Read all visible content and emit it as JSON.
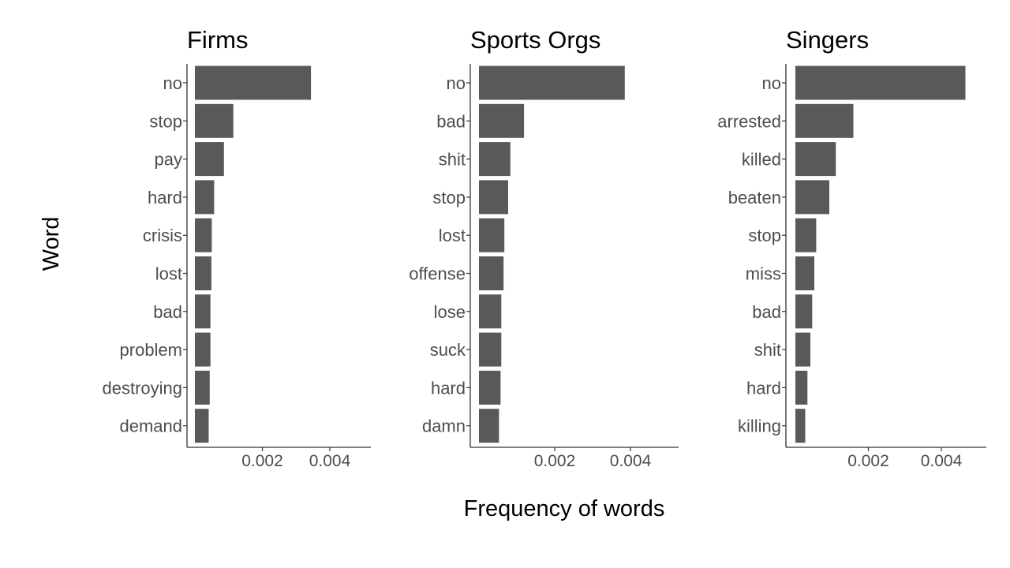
{
  "chart_data": [
    {
      "type": "bar",
      "orientation": "horizontal",
      "title": "Firms",
      "categories": [
        "no",
        "stop",
        "pay",
        "hard",
        "crisis",
        "lost",
        "bad",
        "problem",
        "destroying",
        "demand"
      ],
      "values": [
        0.00344,
        0.00114,
        0.00086,
        0.00057,
        0.0005,
        0.00049,
        0.00046,
        0.00046,
        0.00044,
        0.00041
      ],
      "xticks": [
        "0.002",
        "0.004"
      ],
      "xlim": [
        0,
        0.00525
      ]
    },
    {
      "type": "bar",
      "orientation": "horizontal",
      "title": "Sports Orgs",
      "categories": [
        "no",
        "bad",
        "shit",
        "stop",
        "lost",
        "offense",
        "lose",
        "suck",
        "hard",
        "damn"
      ],
      "values": [
        0.00385,
        0.00119,
        0.00083,
        0.00077,
        0.00067,
        0.00065,
        0.00059,
        0.00059,
        0.00057,
        0.00053
      ],
      "xticks": [
        "0.002",
        "0.004"
      ],
      "xlim": [
        0,
        0.00525
      ]
    },
    {
      "type": "bar",
      "orientation": "horizontal",
      "title": "Singers",
      "categories": [
        "no",
        "arrested",
        "killed",
        "beaten",
        "stop",
        "miss",
        "bad",
        "shit",
        "hard",
        "killing"
      ],
      "values": [
        0.00466,
        0.00159,
        0.00111,
        0.00093,
        0.00057,
        0.00052,
        0.00046,
        0.00041,
        0.00033,
        0.00027
      ],
      "xticks": [
        "0.002",
        "0.004"
      ],
      "xlim": [
        0,
        0.00525
      ]
    }
  ],
  "xlabel": "Frequency of words",
  "ylabel": "Word",
  "colors": {
    "bar": "#595959",
    "axis": "#333333",
    "tick_label": "#4d4d4d",
    "title": "#000000"
  }
}
